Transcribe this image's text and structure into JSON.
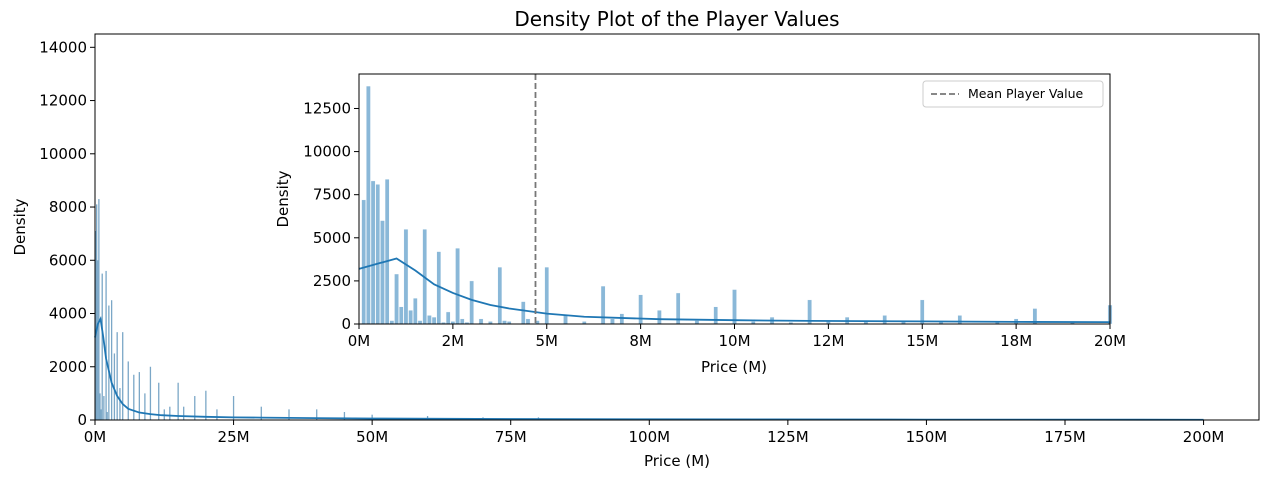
{
  "chart_data": [
    {
      "type": "histogram",
      "title": "Density Plot of the Player Values",
      "xlabel": "Price (M)",
      "ylabel": "Density",
      "xlim": [
        0,
        210
      ],
      "ylim": [
        0,
        14500
      ],
      "xticks": [
        0,
        25,
        50,
        75,
        100,
        125,
        150,
        175,
        200
      ],
      "xtick_labels": [
        "0M",
        "25M",
        "50M",
        "75M",
        "100M",
        "125M",
        "150M",
        "175M",
        "200M"
      ],
      "yticks": [
        0,
        2000,
        4000,
        6000,
        8000,
        10000,
        12000,
        14000
      ],
      "ytick_labels": [
        "0",
        "2000",
        "4000",
        "6000",
        "8000",
        "10000",
        "12000",
        "14000"
      ],
      "bar_color": "#7ba7c7",
      "kde_color": "#1f77b4",
      "bars": [
        {
          "x": 0.1,
          "y": 7100
        },
        {
          "x": 0.3,
          "y": 8100
        },
        {
          "x": 0.5,
          "y": 6000
        },
        {
          "x": 0.7,
          "y": 8300
        },
        {
          "x": 0.9,
          "y": 1000
        },
        {
          "x": 1.1,
          "y": 400
        },
        {
          "x": 1.3,
          "y": 5500
        },
        {
          "x": 1.6,
          "y": 900
        },
        {
          "x": 2.0,
          "y": 5600
        },
        {
          "x": 2.2,
          "y": 300
        },
        {
          "x": 2.5,
          "y": 4300
        },
        {
          "x": 3.0,
          "y": 4500
        },
        {
          "x": 3.5,
          "y": 2500
        },
        {
          "x": 4.0,
          "y": 3300
        },
        {
          "x": 4.5,
          "y": 1200
        },
        {
          "x": 5.0,
          "y": 3300
        },
        {
          "x": 6.0,
          "y": 2200
        },
        {
          "x": 7.0,
          "y": 1700
        },
        {
          "x": 8.0,
          "y": 1800
        },
        {
          "x": 9.0,
          "y": 1000
        },
        {
          "x": 10.0,
          "y": 2000
        },
        {
          "x": 11.5,
          "y": 1400
        },
        {
          "x": 12.5,
          "y": 400
        },
        {
          "x": 13.5,
          "y": 500
        },
        {
          "x": 15.0,
          "y": 1400
        },
        {
          "x": 16.0,
          "y": 500
        },
        {
          "x": 18.0,
          "y": 900
        },
        {
          "x": 20.0,
          "y": 1100
        },
        {
          "x": 22.0,
          "y": 400
        },
        {
          "x": 25.0,
          "y": 900
        },
        {
          "x": 30.0,
          "y": 500
        },
        {
          "x": 35.0,
          "y": 400
        },
        {
          "x": 40.0,
          "y": 400
        },
        {
          "x": 45.0,
          "y": 300
        },
        {
          "x": 50.0,
          "y": 200
        },
        {
          "x": 60.0,
          "y": 150
        },
        {
          "x": 70.0,
          "y": 100
        },
        {
          "x": 80.0,
          "y": 100
        },
        {
          "x": 100.0,
          "y": 50
        },
        {
          "x": 150.0,
          "y": 30
        },
        {
          "x": 200.0,
          "y": 20
        }
      ],
      "kde": {
        "x": [
          0,
          0.5,
          1,
          1.5,
          2,
          3,
          4,
          5,
          6,
          8,
          10,
          12,
          15,
          20,
          25,
          30,
          40,
          50,
          75,
          100,
          150,
          200
        ],
        "y": [
          3100,
          3600,
          3800,
          3100,
          2300,
          1400,
          900,
          600,
          420,
          280,
          220,
          180,
          150,
          120,
          100,
          90,
          70,
          55,
          35,
          25,
          15,
          10
        ]
      }
    },
    {
      "type": "histogram",
      "title": "",
      "xlabel": "Price (M)",
      "ylabel": "Density",
      "xlim": [
        0,
        20
      ],
      "ylim": [
        0,
        14500
      ],
      "xticks": [
        0,
        2.5,
        5,
        7.5,
        10,
        12.5,
        15,
        17.5,
        20
      ],
      "xtick_labels": [
        "0M",
        "2M",
        "5M",
        "8M",
        "10M",
        "12M",
        "15M",
        "18M",
        "20M"
      ],
      "yticks": [
        0,
        2500,
        5000,
        7500,
        10000,
        12500
      ],
      "ytick_labels": [
        "0",
        "2500",
        "5000",
        "7500",
        "10000",
        "12500"
      ],
      "bar_color": "#8ab8d8",
      "kde_color": "#1f77b4",
      "mean_line": {
        "x": 4.7,
        "color": "#777777",
        "label": "Mean Player Value"
      },
      "legend": {
        "position": "top-right",
        "entries": [
          "Mean Player Value"
        ]
      },
      "bars": [
        {
          "x": 0.125,
          "y": 7200
        },
        {
          "x": 0.25,
          "y": 13800
        },
        {
          "x": 0.375,
          "y": 8300
        },
        {
          "x": 0.5,
          "y": 8100
        },
        {
          "x": 0.625,
          "y": 6000
        },
        {
          "x": 0.75,
          "y": 8400
        },
        {
          "x": 0.875,
          "y": 200
        },
        {
          "x": 1.0,
          "y": 2900
        },
        {
          "x": 1.125,
          "y": 1000
        },
        {
          "x": 1.25,
          "y": 5500
        },
        {
          "x": 1.375,
          "y": 800
        },
        {
          "x": 1.5,
          "y": 1500
        },
        {
          "x": 1.625,
          "y": 200
        },
        {
          "x": 1.75,
          "y": 5500
        },
        {
          "x": 1.875,
          "y": 500
        },
        {
          "x": 2.0,
          "y": 400
        },
        {
          "x": 2.125,
          "y": 4200
        },
        {
          "x": 2.25,
          "y": 100
        },
        {
          "x": 2.375,
          "y": 700
        },
        {
          "x": 2.5,
          "y": 150
        },
        {
          "x": 2.625,
          "y": 4400
        },
        {
          "x": 2.75,
          "y": 300
        },
        {
          "x": 2.875,
          "y": 100
        },
        {
          "x": 3.0,
          "y": 2500
        },
        {
          "x": 3.25,
          "y": 300
        },
        {
          "x": 3.5,
          "y": 150
        },
        {
          "x": 3.75,
          "y": 3300
        },
        {
          "x": 3.875,
          "y": 200
        },
        {
          "x": 4.0,
          "y": 150
        },
        {
          "x": 4.375,
          "y": 1300
        },
        {
          "x": 4.5,
          "y": 300
        },
        {
          "x": 4.75,
          "y": 200
        },
        {
          "x": 5.0,
          "y": 3300
        },
        {
          "x": 5.5,
          "y": 500
        },
        {
          "x": 6.0,
          "y": 150
        },
        {
          "x": 6.5,
          "y": 2200
        },
        {
          "x": 6.75,
          "y": 300
        },
        {
          "x": 7.0,
          "y": 600
        },
        {
          "x": 7.5,
          "y": 1700
        },
        {
          "x": 8.0,
          "y": 800
        },
        {
          "x": 8.5,
          "y": 1800
        },
        {
          "x": 9.0,
          "y": 200
        },
        {
          "x": 9.5,
          "y": 1000
        },
        {
          "x": 10.0,
          "y": 2000
        },
        {
          "x": 10.5,
          "y": 150
        },
        {
          "x": 11.0,
          "y": 400
        },
        {
          "x": 11.5,
          "y": 100
        },
        {
          "x": 12.0,
          "y": 1400
        },
        {
          "x": 12.5,
          "y": 150
        },
        {
          "x": 13.0,
          "y": 400
        },
        {
          "x": 13.5,
          "y": 200
        },
        {
          "x": 14.0,
          "y": 500
        },
        {
          "x": 14.5,
          "y": 150
        },
        {
          "x": 15.0,
          "y": 1400
        },
        {
          "x": 15.5,
          "y": 150
        },
        {
          "x": 16.0,
          "y": 500
        },
        {
          "x": 17.0,
          "y": 150
        },
        {
          "x": 17.5,
          "y": 300
        },
        {
          "x": 18.0,
          "y": 900
        },
        {
          "x": 19.0,
          "y": 150
        },
        {
          "x": 20.0,
          "y": 1100
        }
      ],
      "kde": {
        "x": [
          0,
          0.5,
          1,
          1.5,
          2,
          2.5,
          3,
          3.5,
          4,
          5,
          6,
          8,
          10,
          12,
          15,
          18,
          20
        ],
        "y": [
          3200,
          3500,
          3800,
          3100,
          2300,
          1800,
          1400,
          1100,
          900,
          600,
          420,
          280,
          220,
          180,
          150,
          120,
          110
        ]
      }
    }
  ]
}
